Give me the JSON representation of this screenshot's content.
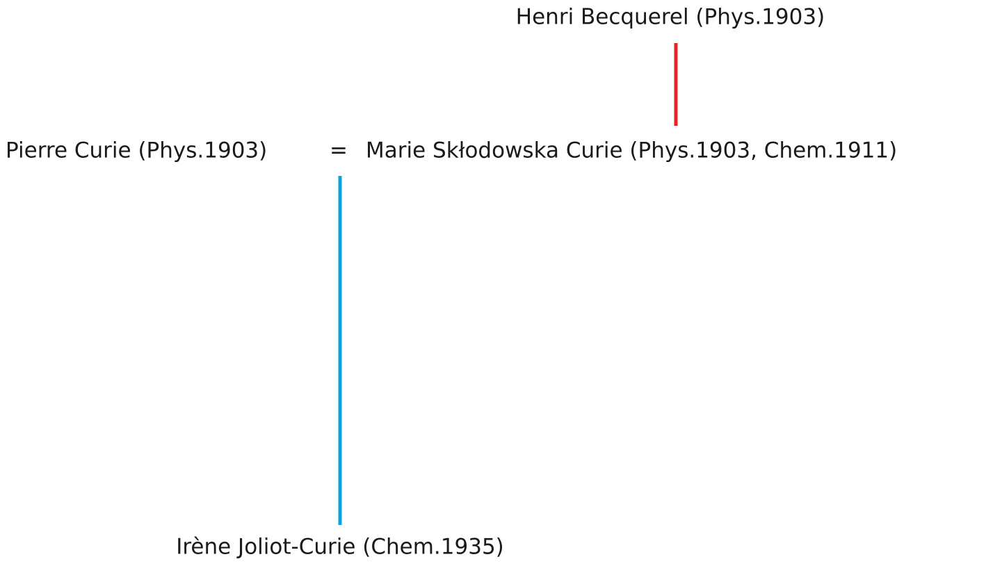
{
  "nodes": [
    {
      "label": "Henri Becquerel (Phys.1903)"
    },
    {
      "label": "Pierre Curie (Phys.1903)"
    },
    {
      "label": "="
    },
    {
      "label": "Marie Skłodowska Curie (Phys.1903, Chem.1911)"
    },
    {
      "label": "Irène Joliot-Curie (Chem.1935)"
    }
  ]
}
